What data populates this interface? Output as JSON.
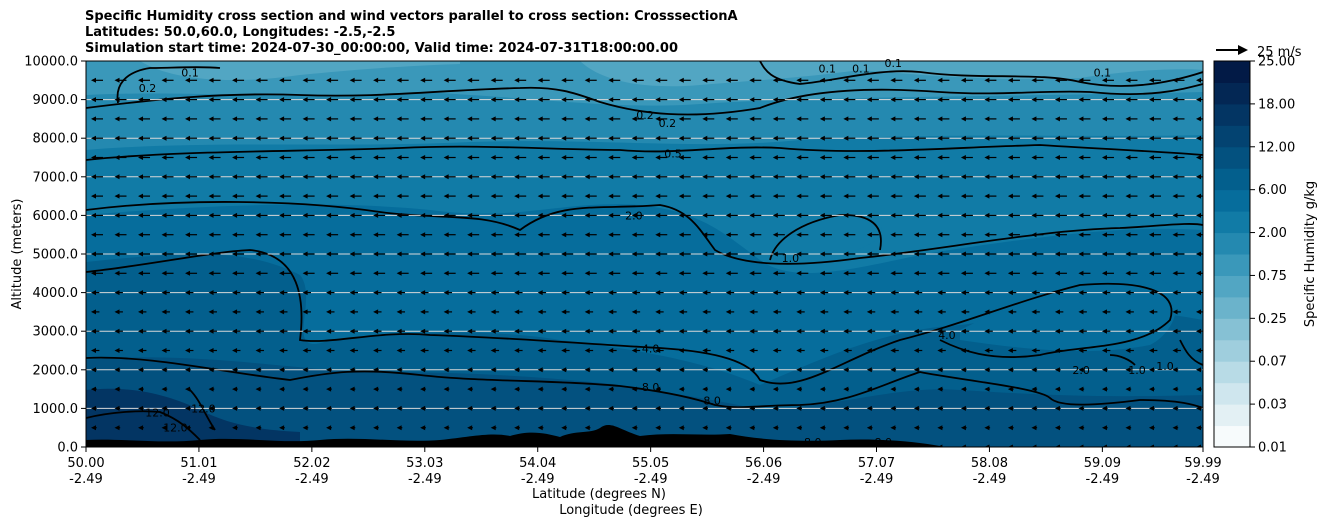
{
  "chart_data": {
    "type": "contour",
    "title_lines": [
      "Specific Humidity cross section and wind vectors parallel to cross section: CrosssectionA",
      "Latitudes: 50.0,60.0, Longitudes: -2.5,-2.5",
      "Simulation start time: 2024-07-30_00:00:00, Valid time: 2024-07-31T18:00:00.00"
    ],
    "ylabel": "Altitude (meters)",
    "xlabel_lat": "Latitude (degrees N)",
    "xlabel_lon": "Longitude (degrees E)",
    "ylim": [
      0,
      10000
    ],
    "yticks": [
      "0.0",
      "1000.0",
      "2000.0",
      "3000.0",
      "4000.0",
      "5000.0",
      "6000.0",
      "7000.0",
      "8000.0",
      "9000.0",
      "10000.0"
    ],
    "xlim": [
      50.0,
      59.99
    ],
    "xticks_lat": [
      "50.00",
      "51.01",
      "52.02",
      "53.03",
      "54.04",
      "55.05",
      "56.06",
      "57.07",
      "58.08",
      "59.09",
      "59.99"
    ],
    "xticks_lon": [
      "-2.49",
      "-2.49",
      "-2.49",
      "-2.49",
      "-2.49",
      "-2.49",
      "-2.49",
      "-2.49",
      "-2.49",
      "-2.49",
      "-2.49"
    ],
    "grid": "horizontal",
    "colorbar": {
      "label": "Specific Humidity g/kg",
      "ticks": [
        "0.01",
        "0.03",
        "0.07",
        "0.25",
        "0.75",
        "2.00",
        "6.00",
        "12.00",
        "18.00",
        "25.00"
      ],
      "colors": [
        "#f7fbfc",
        "#e3f0f4",
        "#cfe6ee",
        "#b8dbe6",
        "#9fcedd",
        "#86c1d4",
        "#6bb3cb",
        "#52a6c3",
        "#3a98ba",
        "#2489b0",
        "#117ba6",
        "#066d9c",
        "#035f8d",
        "#03517f",
        "#034371",
        "#033563",
        "#032754",
        "#021a46"
      ]
    },
    "quiver_key": {
      "label": "25 m/s",
      "value": 25
    },
    "contour_labels": [
      {
        "text": "0.2",
        "lat": 50.55,
        "alt": 9300
      },
      {
        "text": "0.1",
        "lat": 50.93,
        "alt": 9700
      },
      {
        "text": "0.1",
        "lat": 56.63,
        "alt": 9800
      },
      {
        "text": "0.1",
        "lat": 56.93,
        "alt": 9800
      },
      {
        "text": "0.1",
        "lat": 57.22,
        "alt": 9950
      },
      {
        "text": "0.1",
        "lat": 59.09,
        "alt": 9700
      },
      {
        "text": "0.2",
        "lat": 55.0,
        "alt": 8600
      },
      {
        "text": "0.2",
        "lat": 55.2,
        "alt": 8400
      },
      {
        "text": "0.5",
        "lat": 55.25,
        "alt": 7600
      },
      {
        "text": "2.0",
        "lat": 54.9,
        "alt": 6000
      },
      {
        "text": "1.0",
        "lat": 56.3,
        "alt": 4900
      },
      {
        "text": "4.0",
        "lat": 55.05,
        "alt": 2550
      },
      {
        "text": "4.0",
        "lat": 57.7,
        "alt": 2900
      },
      {
        "text": "8.0",
        "lat": 55.05,
        "alt": 1550
      },
      {
        "text": "8.0",
        "lat": 55.6,
        "alt": 1200
      },
      {
        "text": "8.0",
        "lat": 56.5,
        "alt": 130
      },
      {
        "text": "8.0",
        "lat": 57.13,
        "alt": 130
      },
      {
        "text": "12.0",
        "lat": 50.64,
        "alt": 900
      },
      {
        "text": "12.0",
        "lat": 50.8,
        "alt": 500
      },
      {
        "text": "12.0",
        "lat": 51.05,
        "alt": 1000
      },
      {
        "text": "2.0",
        "lat": 58.9,
        "alt": 2000
      },
      {
        "text": "1.0",
        "lat": 59.4,
        "alt": 2000
      },
      {
        "text": "1.0",
        "lat": 59.65,
        "alt": 2100
      }
    ]
  }
}
